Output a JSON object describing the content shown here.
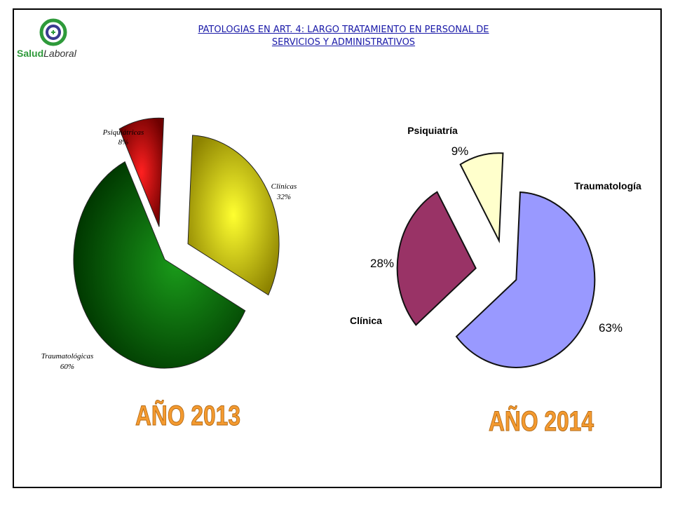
{
  "logo": {
    "text_part1": "Salud",
    "text_part2": "Laboral"
  },
  "title_lines": [
    "PATOLOGIAS EN ART. 4: LARGO TRATAMIENTO EN PERSONAL DE",
    "SERVICIOS Y ADMINISTRATIVOS"
  ],
  "chart_data": [
    {
      "type": "pie",
      "title": "AÑO 2013",
      "slices": [
        {
          "label": "Clinicas",
          "value": 32,
          "value_label": "32%",
          "color": "#d4c400"
        },
        {
          "label": "Traumatológicas",
          "value": 60,
          "value_label": "60%",
          "color": "#0e6e0e"
        },
        {
          "label": "Psiquiátricas",
          "value": 8,
          "value_label": "8%",
          "color": "#cc0000"
        }
      ]
    },
    {
      "type": "pie",
      "title": "AÑO 2014",
      "slices": [
        {
          "label": "Traumatología",
          "value": 63,
          "value_label": "63%",
          "color": "#9999ff"
        },
        {
          "label": "Clínica",
          "value": 28,
          "value_label": "28%",
          "color": "#993366"
        },
        {
          "label": "Psiquiatría",
          "value": 9,
          "value_label": "9%",
          "color": "#ffffcc"
        }
      ]
    }
  ]
}
